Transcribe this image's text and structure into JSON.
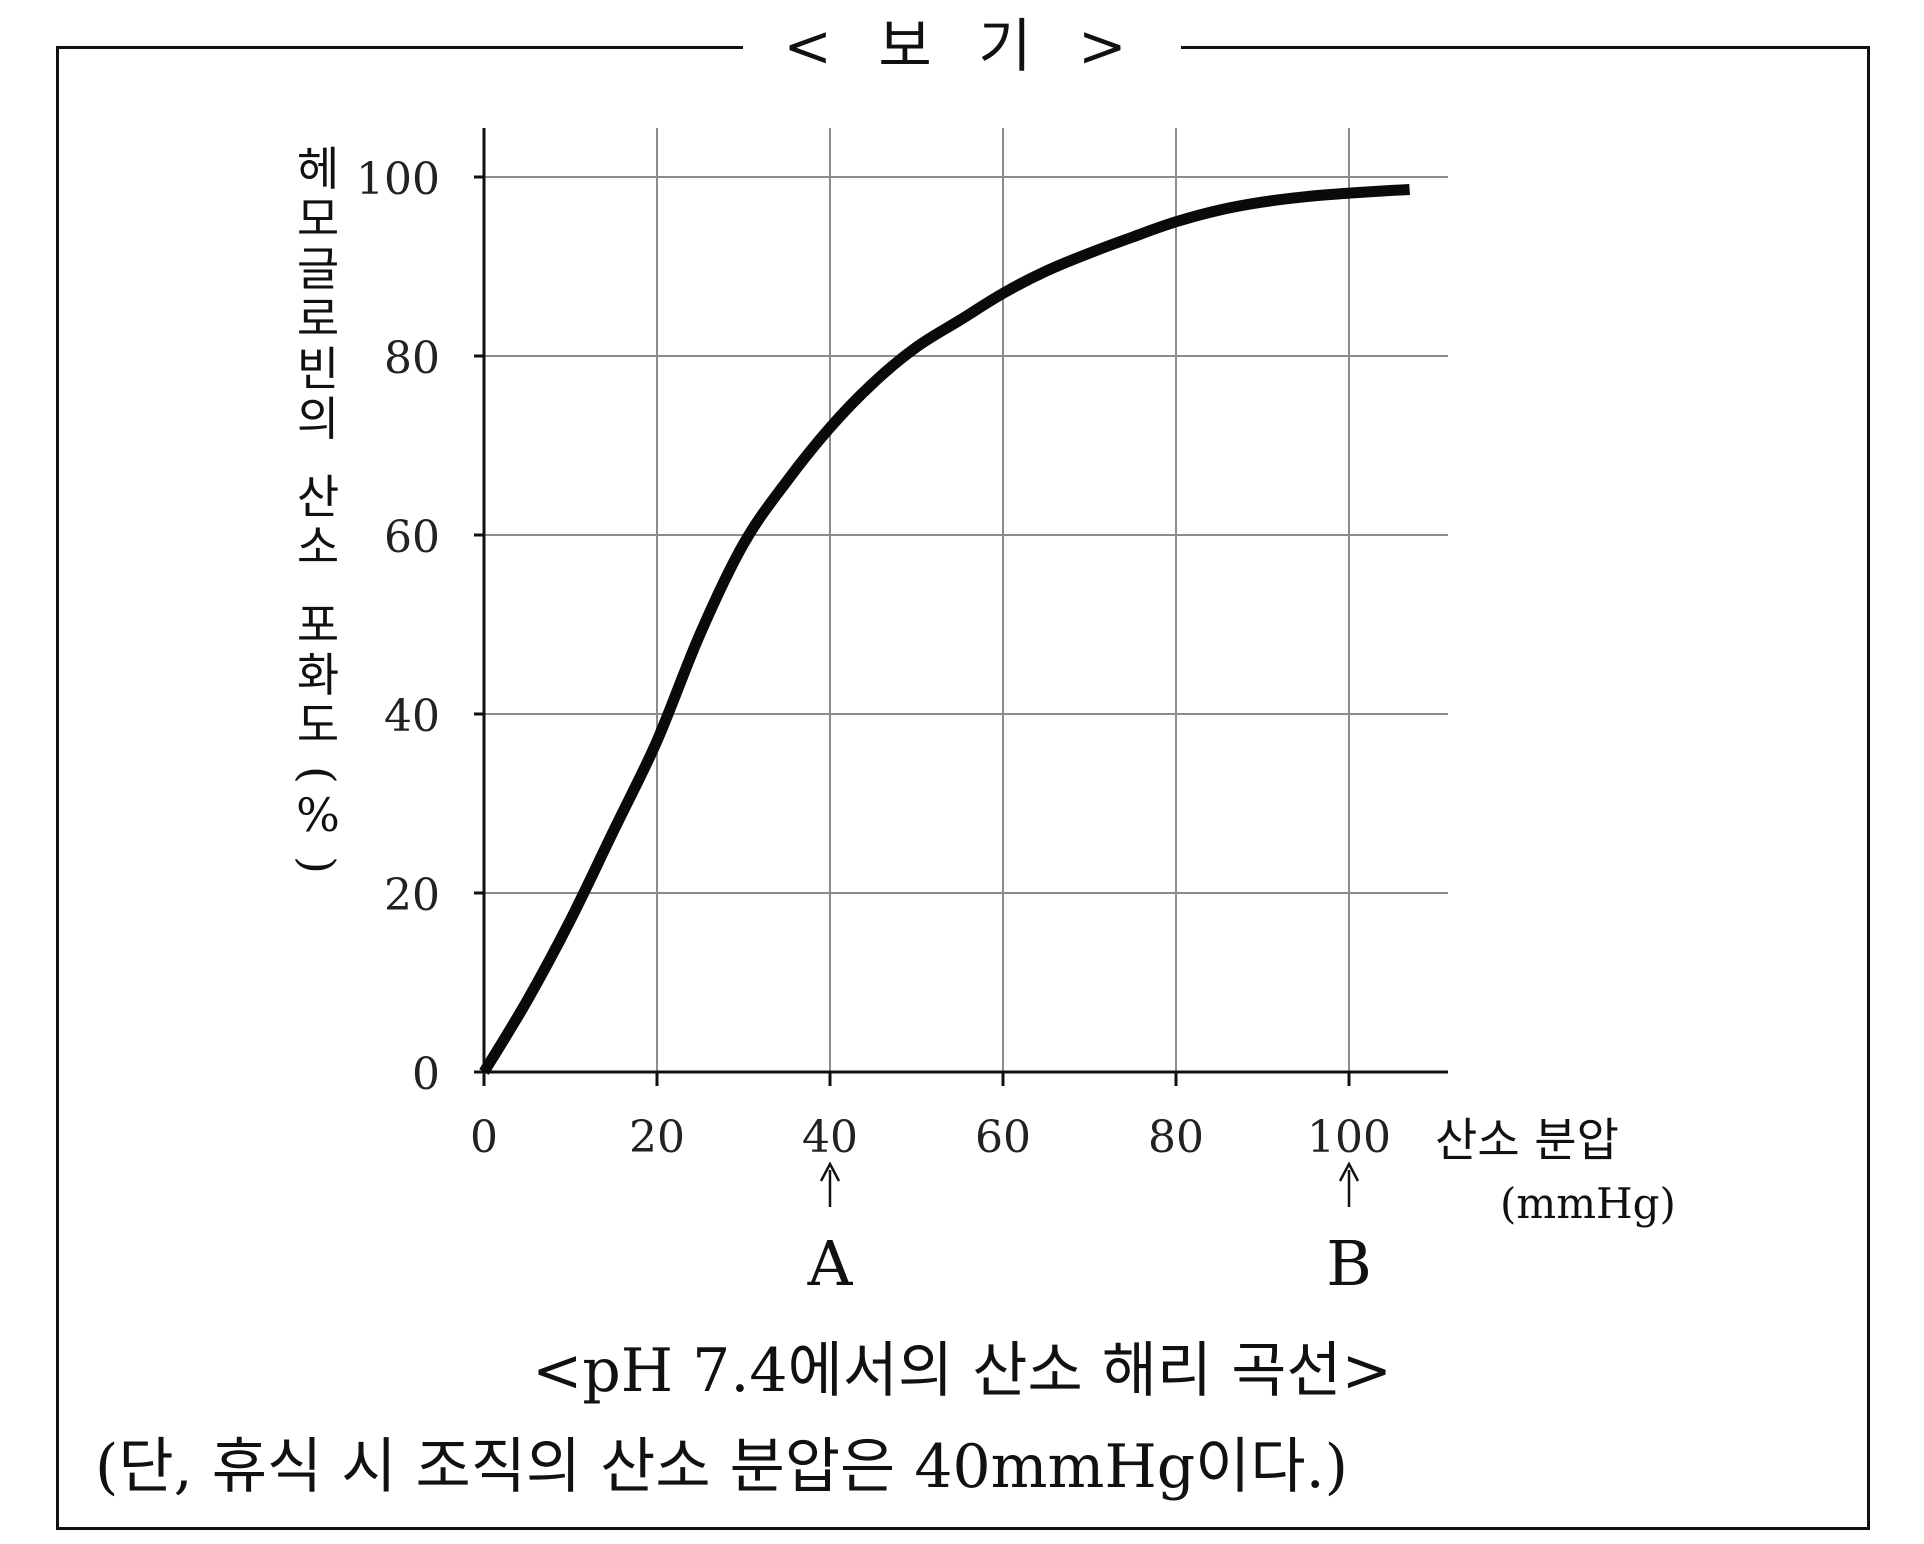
{
  "box_title": "< 보 기 >",
  "caption": "<pH 7.4에서의 산소 해리 곡선>",
  "note": "(단, 휴식 시 조직의 산소 분압은 40mmHg이다.)",
  "chart_data": {
    "type": "line",
    "title": "",
    "ylabel": "헤모글로빈의 산소 포화도(%)",
    "xlabel": "산소 분압",
    "xunit": "(mmHg)",
    "xlim": [
      0,
      110
    ],
    "ylim": [
      0,
      100
    ],
    "x_ticks": [
      "0",
      "20",
      "40",
      "60",
      "80",
      "100"
    ],
    "y_ticks": [
      "0",
      "20",
      "40",
      "60",
      "80",
      "100"
    ],
    "grid": true,
    "series": [
      {
        "x": [
          0,
          5,
          10,
          15,
          20,
          25,
          30,
          35,
          40,
          45,
          50,
          55,
          60,
          65,
          70,
          75,
          80,
          85,
          90,
          95,
          100,
          105,
          107
        ],
        "values": [
          0,
          8,
          17,
          27,
          37,
          49,
          59,
          66,
          72,
          77,
          81,
          84,
          87,
          89.5,
          91.5,
          93.3,
          95,
          96.3,
          97.2,
          97.8,
          98.2,
          98.5,
          98.6
        ]
      }
    ],
    "markers": [
      {
        "label": "A",
        "x": 40
      },
      {
        "label": "B",
        "x": 100
      }
    ]
  }
}
